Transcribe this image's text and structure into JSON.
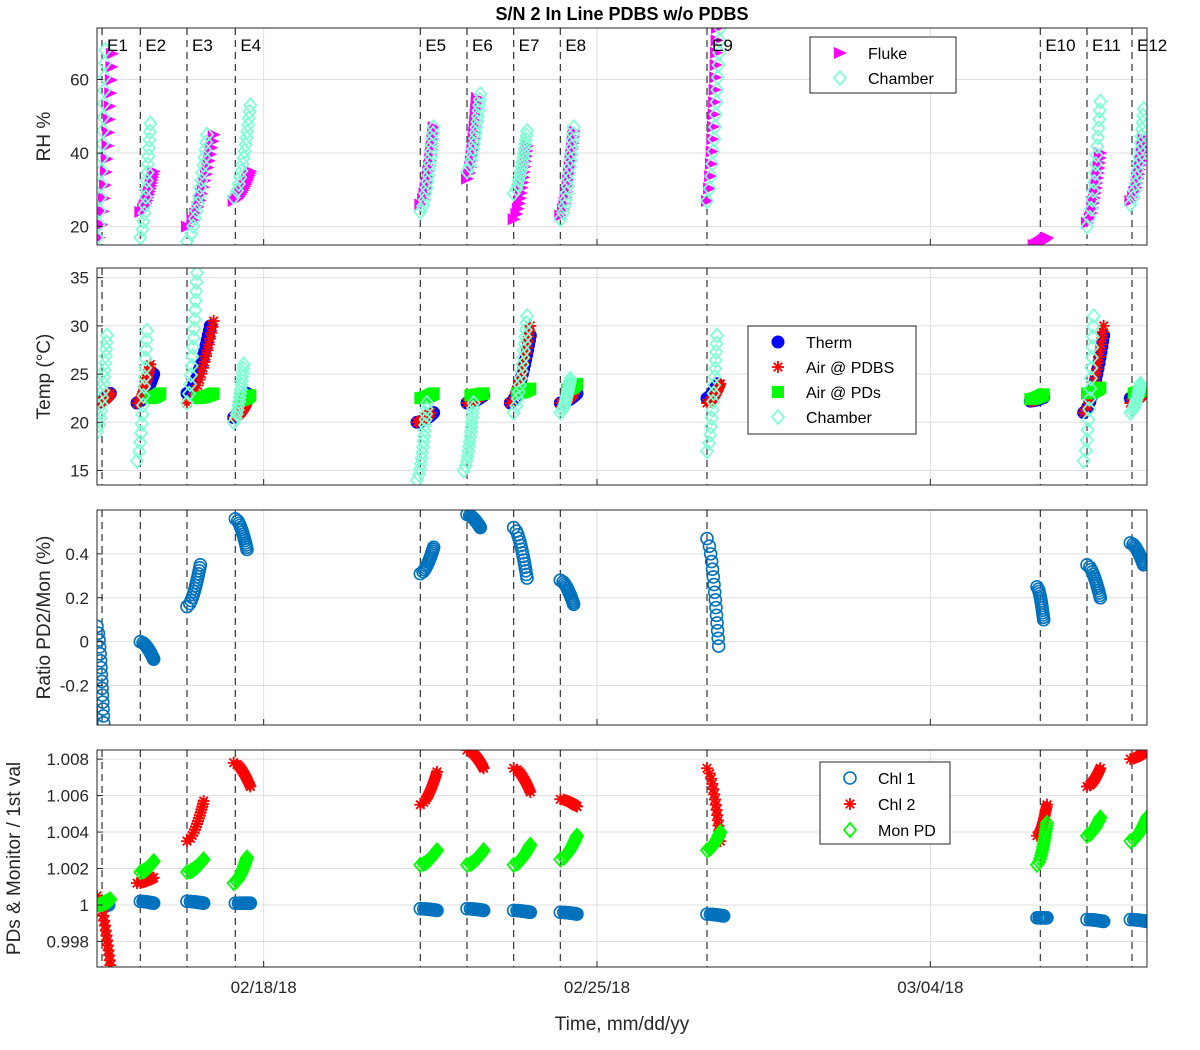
{
  "title": "S/N 2 In Line PDBS w/o PDBS",
  "xlabel": "Time, mm/dd/yy",
  "colors": {
    "fluke": "#ff00ff",
    "chamber": "#7fffd4",
    "therm": "#0000ff",
    "air_pdbs": "#ff0000",
    "air_pds": "#00ff00",
    "chl1": "#0072bd",
    "chl2": "#ff0000",
    "monpd": "#00ff00"
  },
  "chart_data": [
    {
      "type": "scatter",
      "ylabel": "RH %",
      "xlim": [
        0,
        31.5
      ],
      "ylim": [
        15,
        74
      ],
      "yticks": [
        20,
        40,
        60
      ],
      "xticks": [
        5,
        15,
        25
      ],
      "xtick_labels": [
        "02/18/18",
        "02/25/18",
        "03/04/18"
      ],
      "grid": true,
      "events": [
        {
          "label": "E1",
          "x": 0.15
        },
        {
          "label": "E2",
          "x": 1.3
        },
        {
          "label": "E3",
          "x": 2.7
        },
        {
          "label": "E4",
          "x": 4.15
        },
        {
          "label": "E5",
          "x": 9.7
        },
        {
          "label": "E6",
          "x": 11.1
        },
        {
          "label": "E7",
          "x": 12.5
        },
        {
          "label": "E8",
          "x": 13.9
        },
        {
          "label": "E9",
          "x": 18.3
        },
        {
          "label": "E10",
          "x": 28.3
        },
        {
          "label": "E11",
          "x": 29.7
        },
        {
          "label": "E12",
          "x": 31.05
        }
      ],
      "legend": [
        "Fluke",
        "Chamber"
      ],
      "legend_position": "top-right",
      "series": [
        {
          "name": "Fluke",
          "marker": "triangle-right",
          "color": "#ff00ff",
          "segments": [
            [
              0.05,
              0.45,
              17,
              67
            ],
            [
              1.3,
              1.7,
              24,
              35
            ],
            [
              2.7,
              3.5,
              20,
              45
            ],
            [
              4.1,
              4.6,
              27,
              35
            ],
            [
              9.7,
              10.1,
              26,
              47
            ],
            [
              11.1,
              11.4,
              33,
              55
            ],
            [
              12.5,
              12.9,
              22,
              42
            ],
            [
              13.9,
              14.3,
              23,
              46
            ],
            [
              18.3,
              18.6,
              27,
              74
            ],
            [
              28.1,
              28.5,
              15,
              17
            ],
            [
              29.7,
              30.1,
              21,
              40
            ],
            [
              31.0,
              31.4,
              27,
              44
            ]
          ]
        },
        {
          "name": "Chamber",
          "marker": "diamond",
          "color": "#7fffd4",
          "segments": [
            [
              0.0,
              0.25,
              17,
              68
            ],
            [
              1.3,
              1.6,
              17,
              48
            ],
            [
              2.7,
              3.3,
              16,
              45
            ],
            [
              4.1,
              4.6,
              28,
              53
            ],
            [
              9.7,
              10.1,
              24,
              47
            ],
            [
              11.1,
              11.5,
              35,
              56
            ],
            [
              12.5,
              12.9,
              29,
              46
            ],
            [
              13.9,
              14.3,
              22,
              47
            ],
            [
              18.3,
              18.7,
              27,
              74
            ],
            [
              29.7,
              30.1,
              20,
              54
            ],
            [
              31.0,
              31.4,
              26,
              52
            ]
          ]
        }
      ]
    },
    {
      "type": "scatter",
      "ylabel": "Temp (°C)",
      "xlim": [
        0,
        31.5
      ],
      "ylim": [
        13.5,
        36
      ],
      "yticks": [
        15,
        20,
        25,
        30,
        35
      ],
      "grid": true,
      "legend": [
        "Therm",
        "Air @ PDBS",
        "Air @ PDs",
        "Chamber"
      ],
      "legend_position": "center-right",
      "series": [
        {
          "name": "Therm",
          "marker": "circle",
          "color": "#0000ff",
          "segments": [
            [
              0.0,
              0.4,
              22,
              23
            ],
            [
              1.2,
              1.7,
              22,
              25
            ],
            [
              2.7,
              3.4,
              23,
              30
            ],
            [
              4.1,
              4.5,
              20.5,
              23
            ],
            [
              9.6,
              10.1,
              20,
              21
            ],
            [
              11.1,
              11.6,
              22,
              22.8
            ],
            [
              12.4,
              13.0,
              22,
              29
            ],
            [
              13.9,
              14.4,
              22,
              23
            ],
            [
              18.3,
              18.6,
              22.5,
              24
            ],
            [
              28.0,
              28.4,
              22.2,
              22.6
            ],
            [
              29.6,
              30.2,
              21,
              29
            ],
            [
              31.0,
              31.4,
              22.5,
              23
            ]
          ]
        },
        {
          "name": "Air @ PDBS",
          "marker": "asterisk",
          "color": "#ff0000",
          "segments": [
            [
              0.05,
              0.4,
              22,
              23
            ],
            [
              1.2,
              1.6,
              22,
              26
            ],
            [
              2.7,
              3.5,
              22,
              30.5
            ],
            [
              4.1,
              4.5,
              20.5,
              22
            ],
            [
              9.6,
              10.0,
              20,
              21
            ],
            [
              11.1,
              11.6,
              22,
              23
            ],
            [
              12.4,
              13.0,
              22,
              30
            ],
            [
              13.9,
              14.3,
              22,
              23
            ],
            [
              18.3,
              18.7,
              22,
              24
            ],
            [
              28.0,
              28.4,
              22.2,
              22.8
            ],
            [
              29.6,
              30.2,
              21,
              30
            ],
            [
              31.0,
              31.4,
              22,
              23
            ]
          ]
        },
        {
          "name": "Air @ PDs",
          "marker": "square",
          "color": "#00ff00",
          "segments": [
            [
              1.6,
              1.9,
              22.5,
              23
            ],
            [
              3.0,
              3.5,
              22.5,
              23
            ],
            [
              4.3,
              4.6,
              22.3,
              22.8
            ],
            [
              9.7,
              10.1,
              22.5,
              23
            ],
            [
              11.2,
              11.6,
              22.8,
              23
            ],
            [
              12.6,
              13.0,
              23,
              23.5
            ],
            [
              14.1,
              14.4,
              23.4,
              24
            ],
            [
              28.0,
              28.4,
              22.4,
              22.9
            ],
            [
              29.7,
              30.1,
              23,
              23.6
            ],
            [
              31.1,
              31.4,
              23,
              23.5
            ]
          ]
        },
        {
          "name": "Chamber",
          "marker": "diamond",
          "color": "#7fffd4",
          "segments": [
            [
              0.0,
              0.3,
              19,
              29
            ],
            [
              1.2,
              1.5,
              16,
              29.5
            ],
            [
              2.7,
              3.0,
              22,
              35.5
            ],
            [
              4.1,
              4.4,
              20,
              26
            ],
            [
              9.6,
              9.9,
              14,
              22
            ],
            [
              11.0,
              11.3,
              15,
              22
            ],
            [
              12.5,
              12.9,
              21,
              31
            ],
            [
              13.9,
              14.2,
              21,
              24.5
            ],
            [
              18.3,
              18.6,
              17,
              29
            ],
            [
              29.6,
              29.9,
              16,
              31
            ],
            [
              31.0,
              31.3,
              21,
              24
            ]
          ]
        }
      ]
    },
    {
      "type": "scatter",
      "ylabel": "Ratio PD2/Mon (%)",
      "xlim": [
        0,
        31.5
      ],
      "ylim": [
        -0.38,
        0.6
      ],
      "yticks": [
        -0.2,
        0,
        0.2,
        0.4
      ],
      "ytick_labels": [
        "-0.2",
        "0",
        "0.2",
        "0.4"
      ],
      "grid": true,
      "series": [
        {
          "name": "",
          "marker": "circle-open",
          "color": "#0072bd",
          "segments": [
            [
              0.0,
              0.2,
              0.07,
              -0.37
            ],
            [
              1.3,
              1.7,
              0.0,
              -0.08
            ],
            [
              2.7,
              3.1,
              0.16,
              0.35
            ],
            [
              4.15,
              4.5,
              0.56,
              0.42
            ],
            [
              9.7,
              10.1,
              0.31,
              0.43
            ],
            [
              11.1,
              11.5,
              0.58,
              0.52
            ],
            [
              12.5,
              12.9,
              0.52,
              0.29
            ],
            [
              13.9,
              14.3,
              0.28,
              0.17
            ],
            [
              18.3,
              18.65,
              0.47,
              -0.02
            ],
            [
              28.2,
              28.4,
              0.25,
              0.1
            ],
            [
              29.7,
              30.1,
              0.35,
              0.2
            ],
            [
              31.0,
              31.4,
              0.45,
              0.35
            ]
          ]
        }
      ]
    },
    {
      "type": "scatter",
      "ylabel": "PDs & Monitor / 1st val",
      "xlim": [
        0,
        31.5
      ],
      "ylim": [
        0.9966,
        1.0085
      ],
      "yticks": [
        0.998,
        1,
        1.002,
        1.004,
        1.006,
        1.008
      ],
      "ytick_labels": [
        "0.998",
        "1",
        "1.002",
        "1.004",
        "1.006",
        "1.008"
      ],
      "grid": true,
      "legend": [
        "Chl 1",
        "Chl 2",
        "Mon PD"
      ],
      "legend_position": "top-right",
      "series": [
        {
          "name": "Chl 1",
          "marker": "circle-open",
          "color": "#0072bd",
          "segments": [
            [
              0.05,
              0.35,
              1.0,
              1.0
            ],
            [
              1.3,
              1.7,
              1.0002,
              1.0001
            ],
            [
              2.7,
              3.2,
              1.0002,
              1.0001
            ],
            [
              4.15,
              4.6,
              1.0001,
              1.0001
            ],
            [
              9.7,
              10.2,
              0.9998,
              0.9997
            ],
            [
              11.1,
              11.6,
              0.9998,
              0.9997
            ],
            [
              12.5,
              13.0,
              0.9997,
              0.9996
            ],
            [
              13.9,
              14.4,
              0.9996,
              0.9995
            ],
            [
              18.3,
              18.8,
              0.9995,
              0.9994
            ],
            [
              28.2,
              28.5,
              0.9993,
              0.9993
            ],
            [
              29.7,
              30.2,
              0.9992,
              0.9991
            ],
            [
              31.0,
              31.5,
              0.9992,
              0.9991
            ]
          ]
        },
        {
          "name": "Chl 2",
          "marker": "asterisk",
          "color": "#ff0000",
          "segments": [
            [
              0.0,
              0.4,
              1.0005,
              0.9967
            ],
            [
              1.2,
              1.7,
              1.0012,
              1.0015
            ],
            [
              2.7,
              3.2,
              1.0035,
              1.0057
            ],
            [
              4.1,
              4.6,
              1.0078,
              1.0065
            ],
            [
              9.7,
              10.2,
              1.0055,
              1.0073
            ],
            [
              11.1,
              11.6,
              1.0085,
              1.0075
            ],
            [
              12.5,
              13.0,
              1.0075,
              1.0062
            ],
            [
              13.9,
              14.4,
              1.0058,
              1.0054
            ],
            [
              18.3,
              18.7,
              1.0075,
              1.0035
            ],
            [
              28.2,
              28.5,
              1.0038,
              1.0055
            ],
            [
              29.7,
              30.1,
              1.0065,
              1.0075
            ],
            [
              31.0,
              31.5,
              1.008,
              1.0085
            ]
          ]
        },
        {
          "name": "Mon PD",
          "marker": "diamond-open",
          "color": "#00ff00",
          "segments": [
            [
              0.0,
              0.4,
              1.0,
              1.0003
            ],
            [
              1.3,
              1.7,
              1.0018,
              1.0024
            ],
            [
              2.7,
              3.2,
              1.0018,
              1.0025
            ],
            [
              4.1,
              4.5,
              1.0012,
              1.0026
            ],
            [
              9.7,
              10.2,
              1.0022,
              1.003
            ],
            [
              11.1,
              11.6,
              1.0022,
              1.003
            ],
            [
              12.5,
              13.0,
              1.0022,
              1.0033
            ],
            [
              13.9,
              14.4,
              1.0025,
              1.0038
            ],
            [
              18.3,
              18.7,
              1.003,
              1.004
            ],
            [
              28.2,
              28.5,
              1.0022,
              1.0045
            ],
            [
              29.7,
              30.1,
              1.0038,
              1.0048
            ],
            [
              31.0,
              31.5,
              1.0035,
              1.0048
            ]
          ]
        }
      ]
    }
  ]
}
